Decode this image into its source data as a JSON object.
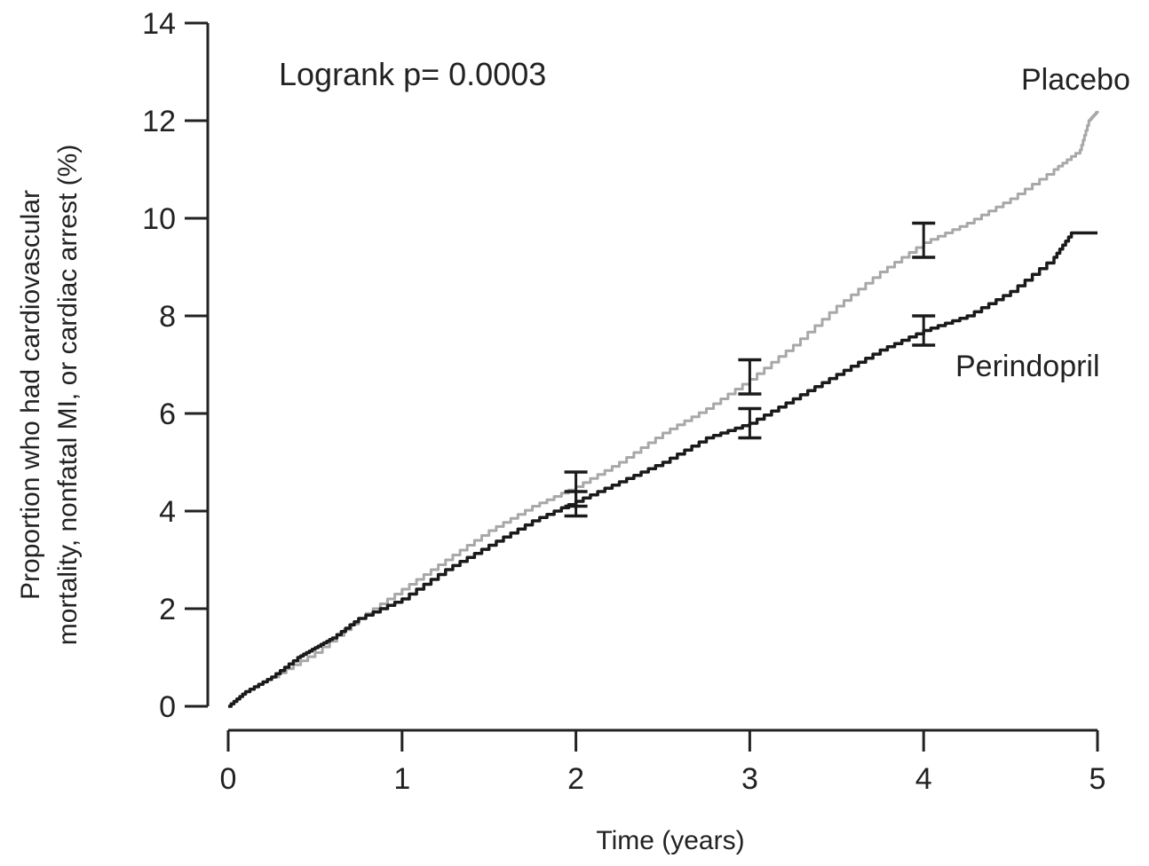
{
  "chart_data": {
    "type": "line",
    "title": "",
    "xlabel": "Time (years)",
    "ylabel_lines": [
      "Proportion who had cardiovascular",
      "mortality, nonfatal MI, or cardiac arrest (%)"
    ],
    "xlim": [
      0,
      5
    ],
    "ylim": [
      0,
      14
    ],
    "x_ticks": [
      "0",
      "1",
      "2",
      "3",
      "4",
      "5"
    ],
    "y_ticks": [
      "0",
      "2",
      "4",
      "6",
      "8",
      "10",
      "12",
      "14"
    ],
    "grid": false,
    "legend": "none (series labelled directly on plot)",
    "annotation": "Logrank p= 0.0003",
    "series": [
      {
        "name": "Placebo",
        "color": "#a8a8a8",
        "x": [
          0,
          0.1,
          0.25,
          0.5,
          0.75,
          1.0,
          1.25,
          1.5,
          1.75,
          2.0,
          2.25,
          2.5,
          2.75,
          3.0,
          3.25,
          3.5,
          3.75,
          4.0,
          4.25,
          4.5,
          4.75,
          4.9,
          4.95,
          5.0
        ],
        "y": [
          0,
          0.3,
          0.6,
          1.1,
          1.8,
          2.4,
          3.0,
          3.6,
          4.1,
          4.5,
          5.0,
          5.6,
          6.1,
          6.7,
          7.4,
          8.2,
          8.9,
          9.5,
          9.9,
          10.4,
          11.0,
          11.4,
          12.0,
          12.2
        ],
        "error_bars": [
          {
            "x": 2,
            "low": 4.1,
            "high": 4.8
          },
          {
            "x": 3,
            "low": 6.4,
            "high": 7.1
          },
          {
            "x": 4,
            "low": 9.2,
            "high": 9.9
          }
        ]
      },
      {
        "name": "Perindopril",
        "color": "#1a1a1a",
        "x": [
          0,
          0.1,
          0.25,
          0.4,
          0.5,
          0.6,
          0.75,
          1.0,
          1.25,
          1.5,
          1.75,
          2.0,
          2.25,
          2.5,
          2.75,
          3.0,
          3.25,
          3.5,
          3.75,
          4.0,
          4.25,
          4.5,
          4.75,
          4.85,
          5.0
        ],
        "y": [
          0,
          0.3,
          0.6,
          1.0,
          1.2,
          1.4,
          1.8,
          2.2,
          2.8,
          3.3,
          3.8,
          4.2,
          4.6,
          5.0,
          5.5,
          5.8,
          6.3,
          6.8,
          7.3,
          7.7,
          8.0,
          8.5,
          9.2,
          9.7,
          9.7
        ],
        "error_bars": [
          {
            "x": 2,
            "low": 3.9,
            "high": 4.4
          },
          {
            "x": 3,
            "low": 5.5,
            "high": 6.1
          },
          {
            "x": 4,
            "low": 7.4,
            "high": 8.0
          }
        ]
      }
    ]
  }
}
